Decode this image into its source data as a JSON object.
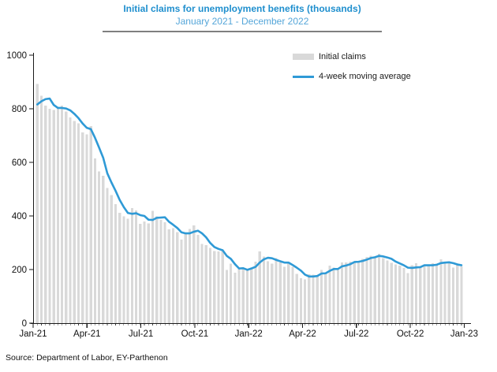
{
  "header": {
    "title": "Initial claims for unemployment benefits (thousands)",
    "subtitle": "January 2021 - December 2022"
  },
  "legend": {
    "items": [
      {
        "label": "Initial claims",
        "marker": "bar-swatch"
      },
      {
        "label": "4-week moving average",
        "marker": "line-swatch"
      }
    ],
    "position": "top-right"
  },
  "footer": {
    "source": "Source: Department of Labor, EY-Parthenon"
  },
  "colors": {
    "title": "#1f8fce",
    "subtitle": "#55a6d9",
    "divider": "#7f7f7f",
    "bar": "#d9d9d9",
    "line": "#2f9ad6",
    "axis": "#1a1a1a",
    "label": "#111111"
  },
  "chart_data": {
    "type": "bar+line",
    "title": "Initial claims for unemployment benefits (thousands)",
    "subtitle": "January 2021 - December 2022",
    "x_unit": "week",
    "x_range": "Jan-2021 to Dec-2022",
    "x_tick_labels": [
      "Jan-21",
      "Apr-21",
      "Jul-21",
      "Oct-21",
      "Jan-22",
      "Apr-22",
      "Jul-22",
      "Oct-22",
      "Jan-23"
    ],
    "x_tick_week_index": [
      0,
      13,
      26,
      39,
      52,
      65,
      78,
      91,
      104
    ],
    "y_ticks": [
      0,
      200,
      400,
      600,
      800,
      1000
    ],
    "ylim": [
      0,
      1000
    ],
    "grid": false,
    "legend_position": "top-right",
    "series": [
      {
        "name": "Initial claims",
        "type": "bar",
        "color": "#d9d9d9",
        "values": [
          893,
          848,
          812,
          800,
          795,
          805,
          812,
          790,
          768,
          755,
          745,
          712,
          705,
          735,
          615,
          566,
          550,
          505,
          478,
          444,
          412,
          398,
          390,
          430,
          420,
          370,
          380,
          372,
          419,
          399,
          385,
          377,
          350,
          354,
          340,
          312,
          335,
          351,
          364,
          329,
          296,
          291,
          281,
          269,
          267,
          270,
          199,
          222,
          188,
          206,
          205,
          198,
          207,
          230,
          267,
          249,
          231,
          222,
          243,
          226,
          211,
          222,
          210,
          184,
          168,
          163,
          182,
          181,
          177,
          199,
          187,
          215,
          207,
          198,
          226,
          227,
          229,
          228,
          232,
          240,
          247,
          251,
          245,
          259,
          242,
          234,
          225,
          219,
          215,
          206,
          187,
          216,
          223,
          211,
          215,
          215,
          223,
          220,
          238,
          223,
          228,
          208,
          216,
          212
        ]
      },
      {
        "name": "4-week moving average",
        "type": "line",
        "color": "#2f9ad6",
        "values": [
          816,
          828,
          836,
          838,
          814,
          803,
          803,
          801,
          794,
          781,
          765,
          745,
          729,
          724,
          692,
          655,
          617,
          559,
          525,
          494,
          460,
          433,
          411,
          408,
          410,
          403,
          400,
          386,
          385,
          393,
          394,
          395,
          378,
          367,
          355,
          339,
          335,
          335,
          341,
          345,
          335,
          320,
          299,
          284,
          277,
          272,
          251,
          240,
          220,
          204,
          205,
          199,
          204,
          210,
          226,
          238,
          244,
          242,
          236,
          231,
          226,
          226,
          217,
          207,
          196,
          181,
          174,
          174,
          176,
          185,
          186,
          195,
          202,
          202,
          212,
          215,
          220,
          228,
          229,
          232,
          237,
          243,
          246,
          251,
          249,
          245,
          240,
          230,
          223,
          216,
          207,
          206,
          208,
          209,
          216,
          216,
          216,
          218,
          224,
          226,
          227,
          224,
          219,
          216
        ]
      }
    ]
  }
}
